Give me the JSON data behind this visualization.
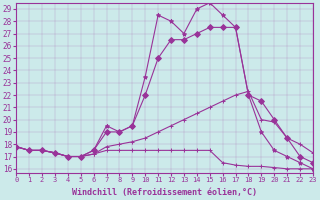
{
  "xlabel": "Windchill (Refroidissement éolien,°C)",
  "background_color": "#cceaea",
  "line_color": "#993399",
  "x_ticks": [
    0,
    1,
    2,
    3,
    4,
    5,
    6,
    7,
    8,
    9,
    10,
    11,
    12,
    13,
    14,
    15,
    16,
    17,
    18,
    19,
    20,
    21,
    22,
    23
  ],
  "y_ticks": [
    16,
    17,
    18,
    19,
    20,
    21,
    22,
    23,
    24,
    25,
    26,
    27,
    28,
    29
  ],
  "xlim": [
    0,
    23
  ],
  "ylim": [
    15.7,
    29.5
  ],
  "series": [
    {
      "x": [
        0,
        1,
        2,
        3,
        4,
        5,
        6,
        7,
        8,
        9,
        10,
        11,
        12,
        13,
        14,
        15,
        16,
        17,
        18,
        19,
        20,
        21,
        22,
        23
      ],
      "y": [
        17.8,
        17.5,
        17.5,
        17.3,
        17.0,
        17.0,
        17.2,
        17.5,
        17.5,
        17.5,
        17.5,
        17.5,
        17.5,
        17.5,
        17.5,
        17.5,
        16.5,
        16.3,
        16.2,
        16.2,
        16.1,
        16.0,
        16.0,
        16.0
      ]
    },
    {
      "x": [
        0,
        1,
        2,
        3,
        4,
        5,
        6,
        7,
        8,
        9,
        10,
        11,
        12,
        13,
        14,
        15,
        16,
        17,
        18,
        19,
        20,
        21,
        22,
        23
      ],
      "y": [
        17.8,
        17.5,
        17.5,
        17.3,
        17.0,
        17.0,
        17.2,
        17.8,
        18.0,
        18.2,
        18.5,
        19.0,
        19.5,
        20.0,
        20.5,
        21.0,
        21.5,
        22.0,
        22.3,
        20.0,
        19.8,
        18.5,
        18.0,
        17.3
      ]
    },
    {
      "x": [
        0,
        1,
        2,
        3,
        4,
        5,
        6,
        7,
        8,
        9,
        10,
        11,
        12,
        13,
        14,
        15,
        16,
        17,
        18,
        19,
        20,
        21,
        22,
        23
      ],
      "y": [
        17.8,
        17.5,
        17.5,
        17.3,
        17.0,
        17.0,
        17.5,
        19.0,
        19.0,
        19.5,
        22.0,
        25.0,
        26.5,
        26.5,
        27.0,
        27.5,
        27.5,
        27.5,
        22.0,
        21.5,
        20.0,
        18.5,
        17.0,
        16.5
      ]
    },
    {
      "x": [
        0,
        1,
        2,
        3,
        4,
        5,
        6,
        7,
        8,
        9,
        10,
        11,
        12,
        13,
        14,
        15,
        16,
        17,
        18,
        19,
        20,
        21,
        22,
        23
      ],
      "y": [
        17.8,
        17.5,
        17.5,
        17.3,
        17.0,
        17.0,
        17.5,
        19.5,
        19.0,
        19.5,
        23.5,
        28.5,
        28.0,
        27.0,
        29.0,
        29.5,
        28.5,
        27.5,
        22.0,
        19.0,
        17.5,
        17.0,
        16.5,
        16.0
      ]
    }
  ]
}
